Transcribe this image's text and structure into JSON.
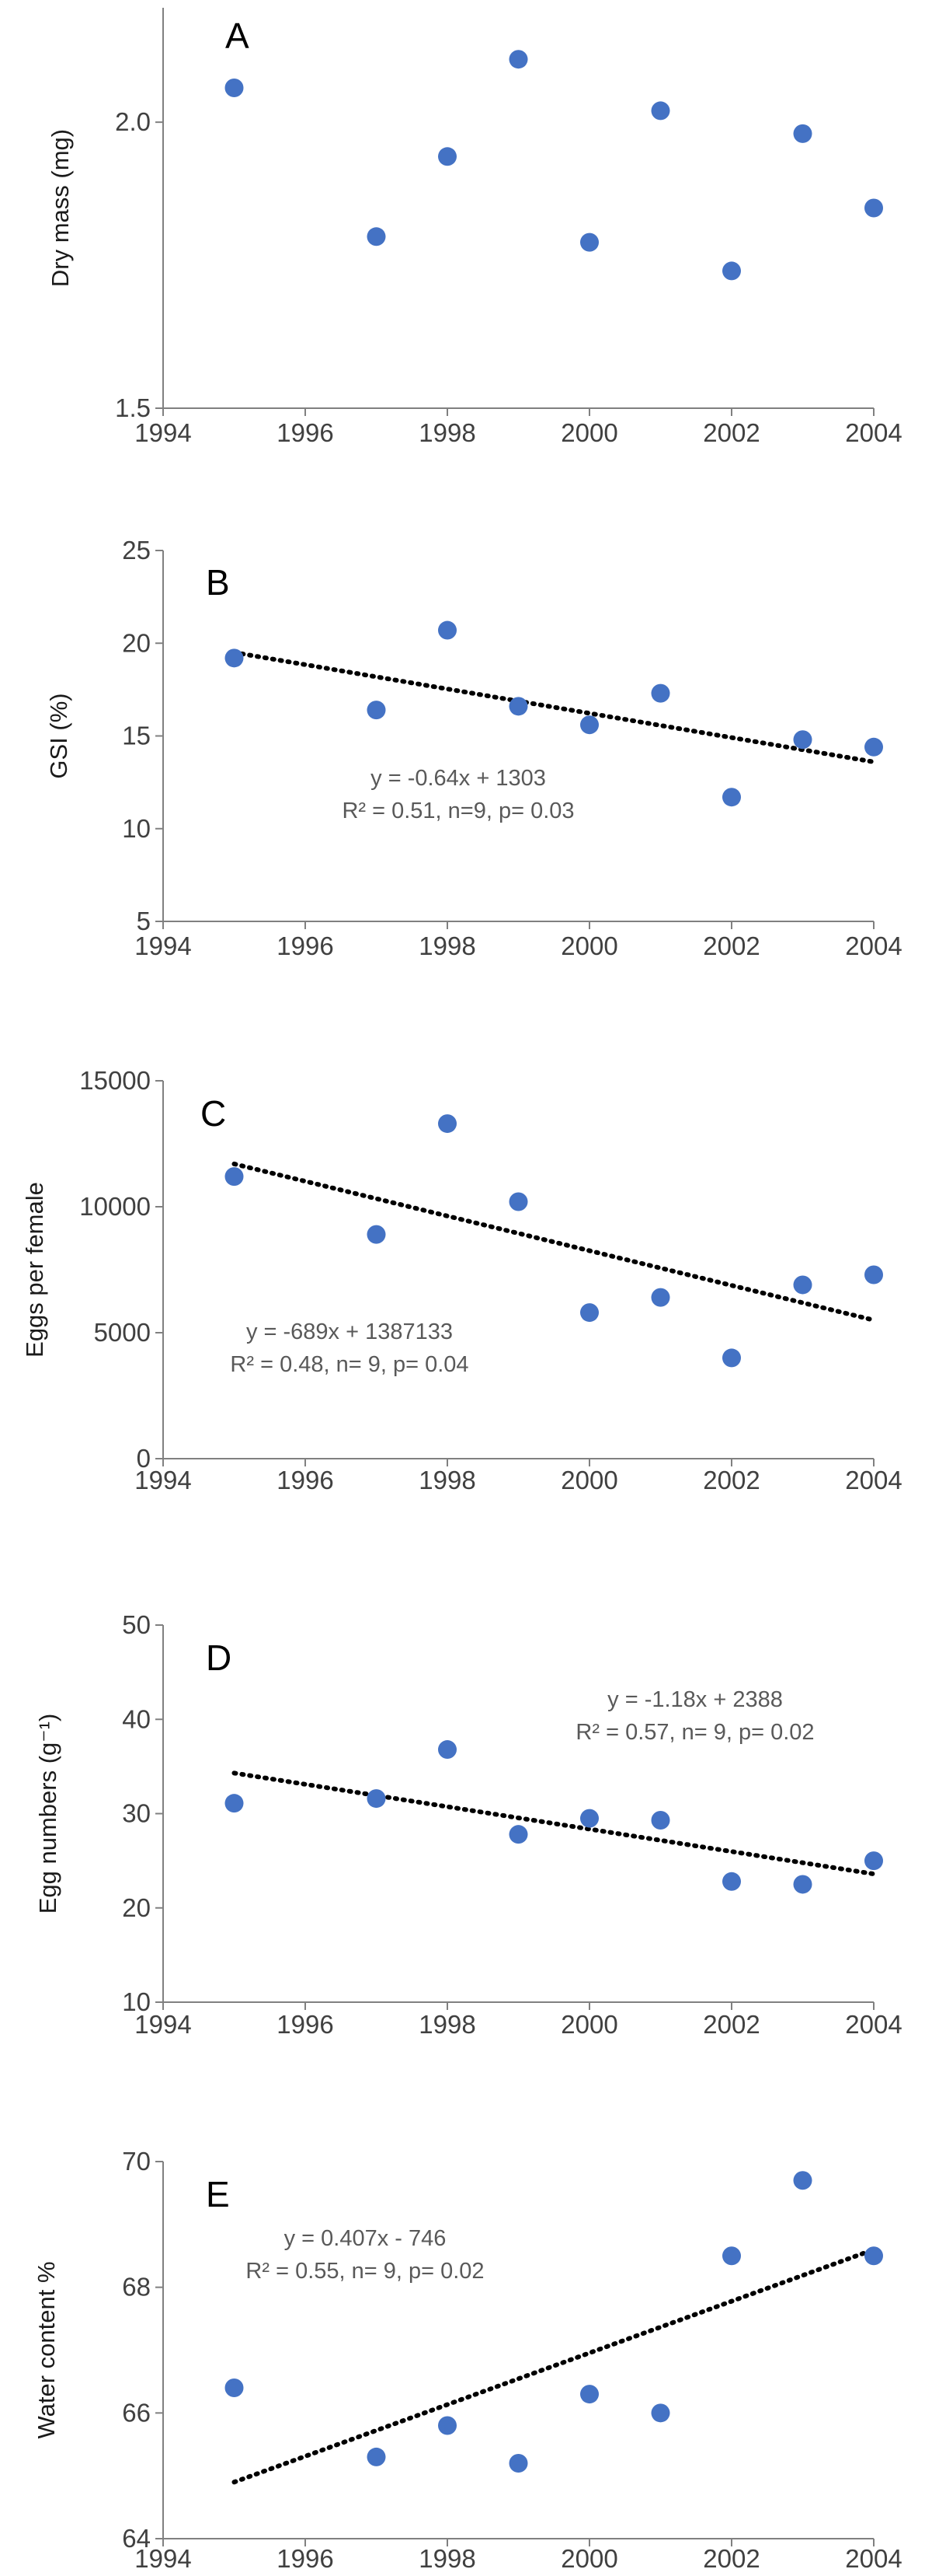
{
  "chart_data": [
    {
      "type": "scatter",
      "panel_label": "A",
      "ylabel": "Dry mass (mg)",
      "xlim": [
        1994,
        2004
      ],
      "ylim": [
        1.5,
        2.2
      ],
      "xticks": [
        "1994",
        "1996",
        "1998",
        "2000",
        "2002",
        "2004"
      ],
      "yticks": [
        "1.5",
        "2.0"
      ],
      "ytick_values": [
        1.5,
        2.0
      ],
      "x": [
        1995,
        1997,
        1998,
        1999,
        2000,
        2001,
        2002,
        2003,
        2004
      ],
      "y": [
        2.06,
        1.8,
        1.94,
        2.11,
        1.79,
        2.02,
        1.74,
        1.98,
        1.85
      ],
      "trendline": null,
      "equation": "",
      "stats": ""
    },
    {
      "type": "scatter",
      "panel_label": "B",
      "ylabel": "GSI (%)",
      "xlim": [
        1994,
        2004
      ],
      "ylim": [
        5,
        25
      ],
      "xticks": [
        "1994",
        "1996",
        "1998",
        "2000",
        "2002",
        "2004"
      ],
      "yticks": [
        "5",
        "10",
        "15",
        "20",
        "25"
      ],
      "ytick_values": [
        5,
        10,
        15,
        20,
        25
      ],
      "x": [
        1995,
        1997,
        1998,
        1999,
        2000,
        2001,
        2002,
        2003,
        2004
      ],
      "y": [
        19.2,
        16.4,
        20.7,
        16.6,
        15.6,
        17.3,
        11.7,
        14.8,
        14.4
      ],
      "trendline": {
        "x1": 1995,
        "y1": 19.5,
        "x2": 2004,
        "y2": 13.6
      },
      "equation": "y = -0.64x + 1303",
      "stats": "R² = 0.51, n=9, p= 0.03"
    },
    {
      "type": "scatter",
      "panel_label": "C",
      "ylabel": "Eggs per female",
      "xlim": [
        1994,
        2004
      ],
      "ylim": [
        0,
        15000
      ],
      "xticks": [
        "1994",
        "1996",
        "1998",
        "2000",
        "2002",
        "2004"
      ],
      "yticks": [
        "0",
        "5000",
        "10000",
        "15000"
      ],
      "ytick_values": [
        0,
        5000,
        10000,
        15000
      ],
      "x": [
        1995,
        1997,
        1998,
        1999,
        2000,
        2001,
        2002,
        2003,
        2004
      ],
      "y": [
        11200,
        8900,
        13300,
        10200,
        5800,
        6400,
        4000,
        6900,
        7300
      ],
      "trendline": {
        "x1": 1995,
        "y1": 11700,
        "x2": 2004,
        "y2": 5500
      },
      "equation": "y = -689x + 1387133",
      "stats": "R² = 0.48, n= 9, p= 0.04"
    },
    {
      "type": "scatter",
      "panel_label": "D",
      "ylabel": "Egg numbers  (g⁻¹)",
      "xlim": [
        1994,
        2004
      ],
      "ylim": [
        10,
        50
      ],
      "xticks": [
        "1994",
        "1996",
        "1998",
        "2000",
        "2002",
        "2004"
      ],
      "yticks": [
        "10",
        "20",
        "30",
        "40",
        "50"
      ],
      "ytick_values": [
        10,
        20,
        30,
        40,
        50
      ],
      "x": [
        1995,
        1997,
        1998,
        1999,
        2000,
        2001,
        2002,
        2003,
        2004
      ],
      "y": [
        31.1,
        31.6,
        36.8,
        27.8,
        29.5,
        29.3,
        22.8,
        22.5,
        25.0
      ],
      "trendline": {
        "x1": 1995,
        "y1": 34.3,
        "x2": 2004,
        "y2": 23.6
      },
      "equation": "y = -1.18x + 2388",
      "stats": "R² = 0.57, n= 9, p= 0.02"
    },
    {
      "type": "scatter",
      "panel_label": "E",
      "ylabel": "Water content %",
      "xlim": [
        1994,
        2004
      ],
      "ylim": [
        64,
        70
      ],
      "xticks": [
        "1994",
        "1996",
        "1998",
        "2000",
        "2002",
        "2004"
      ],
      "yticks": [
        "64",
        "66",
        "68",
        "70"
      ],
      "ytick_values": [
        64,
        66,
        68,
        70
      ],
      "x": [
        1995,
        1997,
        1998,
        1999,
        2000,
        2001,
        2002,
        2003,
        2004
      ],
      "y": [
        66.4,
        65.3,
        65.8,
        65.2,
        66.3,
        66.0,
        68.5,
        69.7,
        68.5
      ],
      "trendline": {
        "x1": 1995,
        "y1": 64.9,
        "x2": 2004,
        "y2": 68.6
      },
      "equation": "y = 0.407x - 746",
      "stats": "R² =  0.55, n= 9, p= 0.02"
    }
  ],
  "colors": {
    "marker": "#4472C4",
    "trendline": "#000000",
    "axis": "#808080"
  }
}
